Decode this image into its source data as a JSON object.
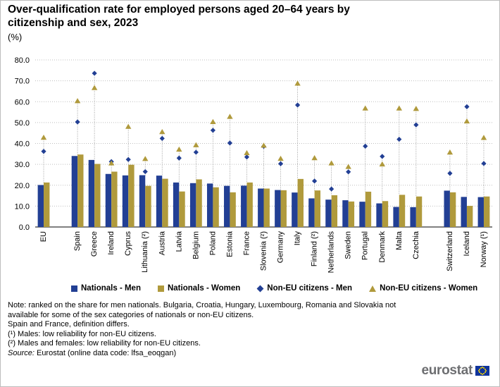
{
  "title": "Over-qualification rate for employed persons aged 20–64 years by citizenship and sex, 2023",
  "unit": "(%)",
  "colors": {
    "nationals_men": "#223f94",
    "nationals_women": "#b09a3c",
    "noneu_men": "#223f94",
    "noneu_women": "#b09a3c",
    "grid": "#bfbfbf",
    "dropline": "#8c8c8c"
  },
  "legend": {
    "nationals_men": "Nationals - Men",
    "nationals_women": "Nationals - Women",
    "noneu_men": "Non-EU citizens - Men",
    "noneu_women": "Non-EU citizens - Women"
  },
  "chart_data": {
    "type": "bar",
    "title": "Over-qualification rate for employed persons aged 20–64 years by citizenship and sex, 2023",
    "ylabel": "(%)",
    "ylim": [
      0,
      80
    ],
    "yticks": [
      "0.0",
      "10.0",
      "20.0",
      "30.0",
      "40.0",
      "50.0",
      "60.0",
      "70.0",
      "80.0"
    ],
    "grid": "horizontal dotted",
    "legend_position": "bottom",
    "categories": [
      "EU",
      "Spain",
      "Greece",
      "Ireland",
      "Cyprus",
      "Lithuania (²)",
      "Austria",
      "Latvia",
      "Belgium",
      "Poland",
      "Estonia",
      "France",
      "Slovenia (²)",
      "Germany",
      "Italy",
      "Finland (²)",
      "Netherlands",
      "Sweden",
      "Portugal",
      "Denmark",
      "Malta",
      "Czechia",
      "Switzerland",
      "Iceland",
      "Norway (¹)"
    ],
    "groups_after_gap": [
      1,
      22
    ],
    "series": [
      {
        "name": "Nationals - Men",
        "kind": "bar",
        "values": [
          20.1,
          34.0,
          32.1,
          25.4,
          24.7,
          24.8,
          24.6,
          21.3,
          21.0,
          20.8,
          19.7,
          19.8,
          18.4,
          17.7,
          16.5,
          13.7,
          13.1,
          12.8,
          12.1,
          11.3,
          9.6,
          9.5,
          17.4,
          14.4,
          14.3
        ]
      },
      {
        "name": "Nationals - Women",
        "kind": "bar",
        "values": [
          21.3,
          34.7,
          30.2,
          26.5,
          29.8,
          19.7,
          23.1,
          17.0,
          22.8,
          19.0,
          16.6,
          21.3,
          18.4,
          17.6,
          23.0,
          17.5,
          15.2,
          12.2,
          16.9,
          12.4,
          15.4,
          14.6,
          16.6,
          10.1,
          14.6
        ]
      },
      {
        "name": "Non-EU citizens - Men",
        "kind": "diamond",
        "values": [
          36.2,
          50.3,
          73.6,
          31.3,
          32.3,
          26.5,
          42.4,
          33.0,
          35.8,
          46.3,
          40.2,
          33.5,
          38.6,
          30.3,
          58.4,
          22.0,
          18.2,
          26.4,
          38.7,
          33.8,
          42.0,
          48.9,
          25.7,
          57.6,
          30.4
        ]
      },
      {
        "name": "Non-EU citizens - Women",
        "kind": "triangle",
        "values": [
          42.8,
          60.3,
          66.6,
          30.5,
          48.0,
          32.6,
          45.5,
          37.1,
          39.2,
          50.3,
          52.8,
          35.4,
          39.0,
          32.7,
          68.7,
          33.0,
          30.5,
          28.8,
          56.8,
          30.0,
          56.8,
          56.6,
          35.7,
          50.6,
          42.7
        ]
      }
    ]
  },
  "notes": {
    "line1": "Note: ranked on the share for men nationals. Bulgaria, Croatia, Hungary, Luxembourg, Romania and Slovakia not available for some of the sex categories of nationals or non-EU citizens.",
    "line2": "Spain and France, definition differs.",
    "line3": "(¹) Males: low reliability for non-EU citizens.",
    "line4": "(²) Males and females: low reliability for non-EU citizens.",
    "source_label": "Source:",
    "source_text": " Eurostat (online data code: lfsa_eoqgan)"
  },
  "logo": {
    "text": "eurostat"
  }
}
